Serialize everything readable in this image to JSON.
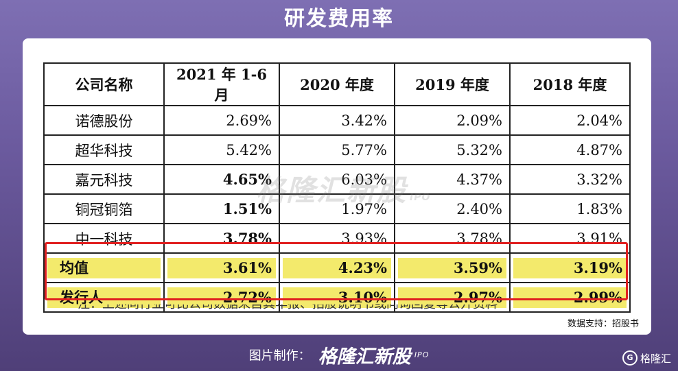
{
  "title": "研发费用率",
  "table": {
    "headers": [
      "公司名称",
      "2021 年 1-6 月",
      "2020 年度",
      "2019 年度",
      "2018 年度"
    ],
    "rows": [
      {
        "name": "诺德股份",
        "values": [
          "2.69%",
          "3.42%",
          "2.09%",
          "2.04%"
        ]
      },
      {
        "name": "超华科技",
        "values": [
          "5.42%",
          "5.77%",
          "5.32%",
          "4.87%"
        ]
      },
      {
        "name": "嘉元科技",
        "values": [
          "4.65%",
          "6.03%",
          "4.37%",
          "3.32%"
        ]
      },
      {
        "name": "铜冠铜箔",
        "values": [
          "1.51%",
          "1.97%",
          "2.40%",
          "1.83%"
        ]
      },
      {
        "name": "中一科技",
        "values": [
          "3.78%",
          "3.93%",
          "3.78%",
          "3.91%"
        ]
      }
    ],
    "highlight_rows": [
      {
        "name": "均值",
        "values": [
          "3.61%",
          "4.23%",
          "3.59%",
          "3.19%"
        ]
      },
      {
        "name": "发行人",
        "values": [
          "2.72%",
          "3.10%",
          "2.97%",
          "2.99%"
        ]
      }
    ]
  },
  "cut_note": "注：上述同行业可比公司数据来自其年报、招股说明书或问询回复等公开资料",
  "source": "数据支持：招股书",
  "watermark": {
    "text": "格隆汇新股",
    "sub": "IPO"
  },
  "footer": {
    "label": "图片制作：",
    "brand": "格隆汇新股",
    "sub": "IPO"
  },
  "corner_logo": {
    "icon": "G",
    "text": "格隆汇"
  },
  "colors": {
    "highlight": "#f3ea6c",
    "red_box": "#e02020",
    "background": "#6b5a9e"
  }
}
